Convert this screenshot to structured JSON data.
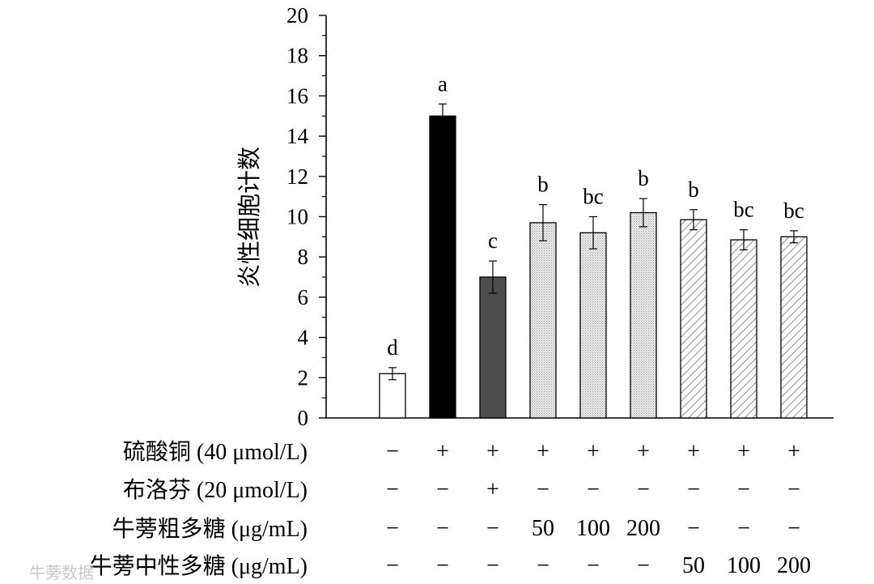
{
  "chart_data": {
    "type": "bar",
    "title": "",
    "xlabel": "",
    "ylabel": "炎性细胞计数",
    "ylim": [
      0,
      20
    ],
    "yticks": [
      0,
      2,
      4,
      6,
      8,
      10,
      12,
      14,
      16,
      18,
      20
    ],
    "grid": false,
    "bars": [
      {
        "value": 2.2,
        "error": 0.3,
        "letter": "d",
        "fill": "white"
      },
      {
        "value": 15.0,
        "error": 0.6,
        "letter": "a",
        "fill": "black"
      },
      {
        "value": 7.0,
        "error": 0.8,
        "letter": "c",
        "fill": "dark-gray"
      },
      {
        "value": 9.7,
        "error": 0.9,
        "letter": "b",
        "fill": "dotted"
      },
      {
        "value": 9.2,
        "error": 0.8,
        "letter": "bc",
        "fill": "dotted"
      },
      {
        "value": 10.2,
        "error": 0.7,
        "letter": "b",
        "fill": "dotted"
      },
      {
        "value": 9.85,
        "error": 0.5,
        "letter": "b",
        "fill": "hatched"
      },
      {
        "value": 8.85,
        "error": 0.5,
        "letter": "bc",
        "fill": "hatched"
      },
      {
        "value": 9.0,
        "error": 0.3,
        "letter": "bc",
        "fill": "hatched"
      }
    ],
    "treatment_table": [
      {
        "label": "硫酸铜 (40 μmol/L)",
        "cells": [
          "−",
          "+",
          "+",
          "+",
          "+",
          "+",
          "+",
          "+",
          "+"
        ]
      },
      {
        "label": "布洛芬 (20 μmol/L)",
        "cells": [
          "−",
          "−",
          "+",
          "−",
          "−",
          "−",
          "−",
          "−",
          "−"
        ]
      },
      {
        "label": "牛蒡粗多糖 (μg/mL)",
        "cells": [
          "−",
          "−",
          "−",
          "50",
          "100",
          "200",
          "−",
          "−",
          "−"
        ]
      },
      {
        "label": "牛蒡中性多糖 (μg/mL)",
        "cells": [
          "−",
          "−",
          "−",
          "−",
          "−",
          "−",
          "50",
          "100",
          "200"
        ]
      }
    ]
  },
  "colors": {
    "axis": "#000000",
    "black_bar": "#000000",
    "dark_gray_bar": "#4d4d4d",
    "white_bar": "#ffffff",
    "pattern_stroke": "#8a8a8a",
    "watermark": "#c8c8c8"
  },
  "watermark": {
    "text": "牛蒡数据"
  }
}
